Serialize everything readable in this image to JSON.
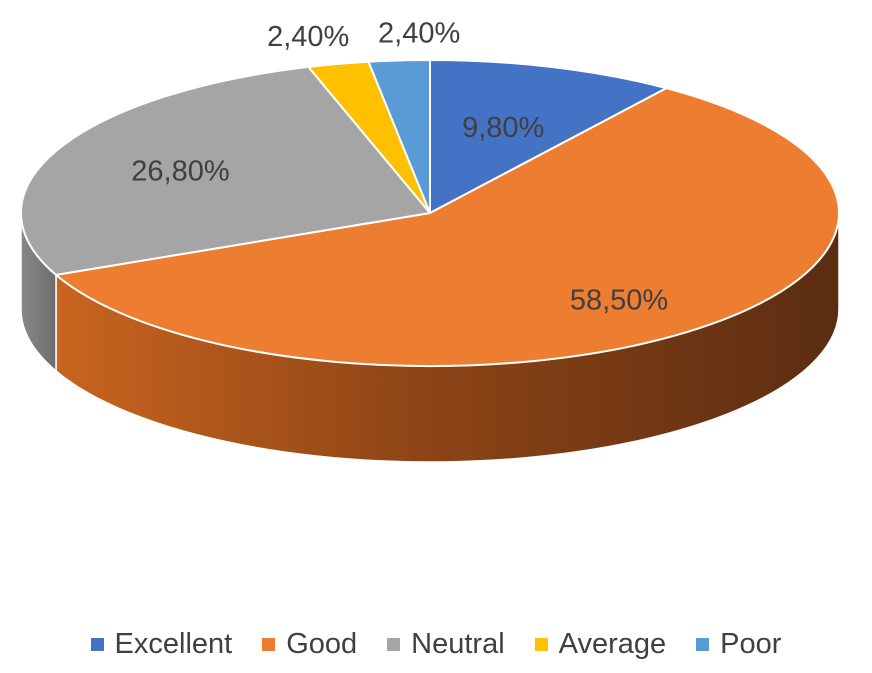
{
  "chart_data": {
    "type": "pie",
    "style": "3d",
    "title": "",
    "categories": [
      "Excellent",
      "Good",
      "Neutral",
      "Average",
      "Poor"
    ],
    "values": [
      9.8,
      58.5,
      26.8,
      2.4,
      2.4
    ],
    "labels": [
      "9,80%",
      "58,50%",
      "26,80%",
      "2,40%",
      "2,40%"
    ],
    "colors": [
      "#4472C4",
      "#ED7D31",
      "#A5A5A5",
      "#FFC000",
      "#5B9BD5"
    ],
    "legend_position": "bottom"
  }
}
